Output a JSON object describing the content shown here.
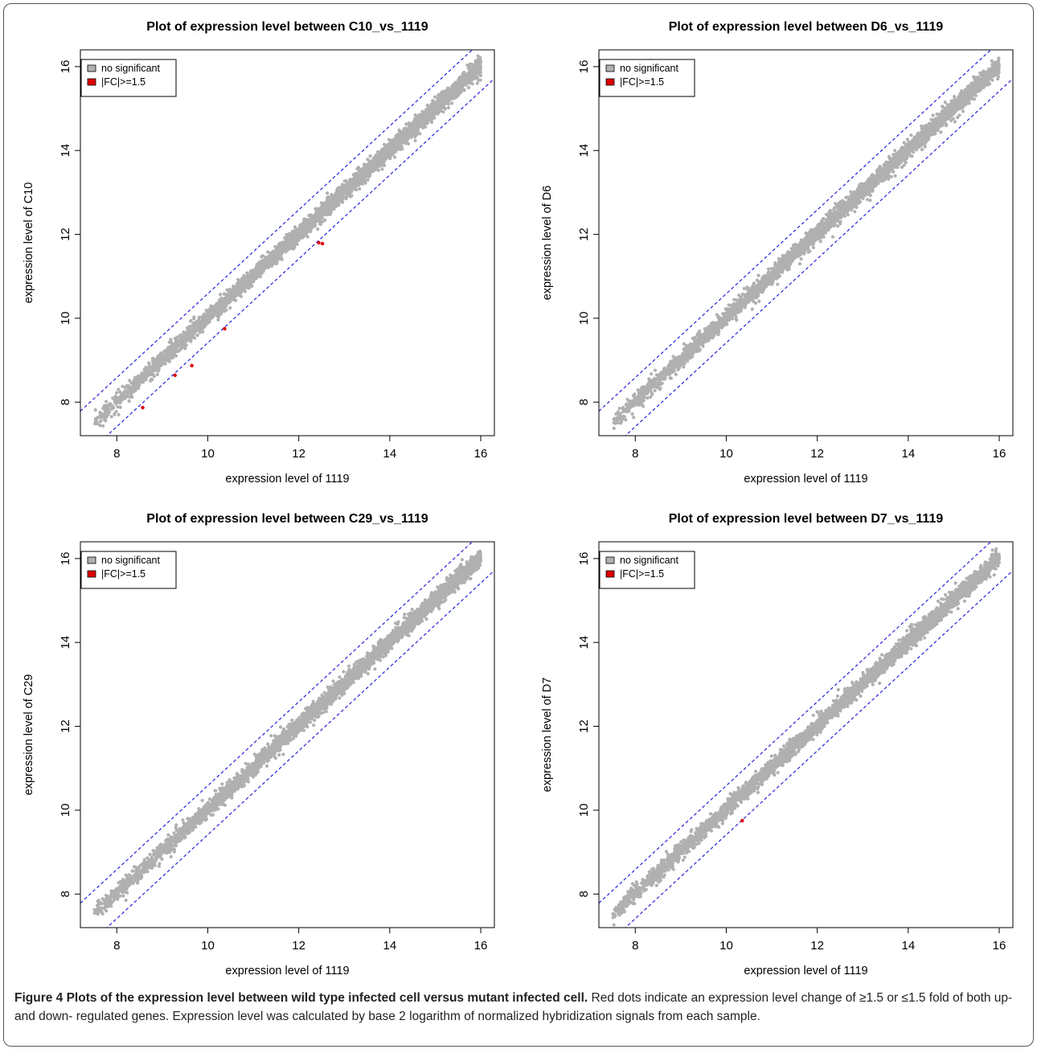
{
  "chart_data": [
    {
      "type": "scatter",
      "title": "Plot of expression level between C10_vs_1119",
      "xlabel": "expression level of 1119",
      "ylabel": "expression level of C10",
      "xlim": [
        7.2,
        16.3
      ],
      "ylim": [
        7.2,
        16.4
      ],
      "xticks": [
        8,
        10,
        12,
        14,
        16
      ],
      "yticks": [
        8,
        10,
        12,
        14,
        16
      ],
      "grid": false,
      "legend_position": "top-left",
      "reference_lines": [
        {
          "style": "dashed",
          "color": "#2222dd",
          "slope": 1,
          "intercept": 0.585
        },
        {
          "style": "dashed",
          "color": "#2222dd",
          "slope": 1,
          "intercept": -0.585
        }
      ],
      "series": [
        {
          "name": "no significant",
          "color": "#b0b0b0",
          "distribution": "dense band along y = x from about (7.5, 7.5) to (16, 16)"
        },
        {
          "name": "|FC|>=1.5",
          "color": "#dd0000",
          "points": [
            [
              8.57,
              7.87
            ],
            [
              9.28,
              8.64
            ],
            [
              9.65,
              8.87
            ],
            [
              10.37,
              9.75
            ],
            [
              12.44,
              11.8
            ],
            [
              12.52,
              11.78
            ]
          ]
        }
      ]
    },
    {
      "type": "scatter",
      "title": "Plot of expression level between D6_vs_1119",
      "xlabel": "expression level of 1119",
      "ylabel": "expression level of D6",
      "xlim": [
        7.2,
        16.3
      ],
      "ylim": [
        7.2,
        16.4
      ],
      "xticks": [
        8,
        10,
        12,
        14,
        16
      ],
      "yticks": [
        8,
        10,
        12,
        14,
        16
      ],
      "grid": false,
      "legend_position": "top-left",
      "reference_lines": [
        {
          "style": "dashed",
          "color": "#2222dd",
          "slope": 1,
          "intercept": 0.585
        },
        {
          "style": "dashed",
          "color": "#2222dd",
          "slope": 1,
          "intercept": -0.585
        }
      ],
      "series": [
        {
          "name": "no significant",
          "color": "#b0b0b0",
          "distribution": "dense band along y = x from about (7.5, 7.5) to (16, 16)"
        },
        {
          "name": "|FC|>=1.5",
          "color": "#dd0000",
          "points": []
        }
      ]
    },
    {
      "type": "scatter",
      "title": "Plot of expression level between C29_vs_1119",
      "xlabel": "expression level of 1119",
      "ylabel": "expression level of C29",
      "xlim": [
        7.2,
        16.3
      ],
      "ylim": [
        7.2,
        16.4
      ],
      "xticks": [
        8,
        10,
        12,
        14,
        16
      ],
      "yticks": [
        8,
        10,
        12,
        14,
        16
      ],
      "grid": false,
      "legend_position": "top-left",
      "reference_lines": [
        {
          "style": "dashed",
          "color": "#2222dd",
          "slope": 1,
          "intercept": 0.585
        },
        {
          "style": "dashed",
          "color": "#2222dd",
          "slope": 1,
          "intercept": -0.585
        }
      ],
      "series": [
        {
          "name": "no significant",
          "color": "#b0b0b0",
          "distribution": "dense band along y = x from about (7.5, 7.5) to (16, 16)"
        },
        {
          "name": "|FC|>=1.5",
          "color": "#dd0000",
          "points": []
        }
      ]
    },
    {
      "type": "scatter",
      "title": "Plot of expression level between D7_vs_1119",
      "xlabel": "expression level of 1119",
      "ylabel": "expression level of D7",
      "xlim": [
        7.2,
        16.3
      ],
      "ylim": [
        7.2,
        16.4
      ],
      "xticks": [
        8,
        10,
        12,
        14,
        16
      ],
      "yticks": [
        8,
        10,
        12,
        14,
        16
      ],
      "grid": false,
      "legend_position": "top-left",
      "reference_lines": [
        {
          "style": "dashed",
          "color": "#2222dd",
          "slope": 1,
          "intercept": 0.585
        },
        {
          "style": "dashed",
          "color": "#2222dd",
          "slope": 1,
          "intercept": -0.585
        }
      ],
      "series": [
        {
          "name": "no significant",
          "color": "#b0b0b0",
          "distribution": "dense band along y = x from about (7.5, 7.5) to (16, 16)"
        },
        {
          "name": "|FC|>=1.5",
          "color": "#dd0000",
          "points": [
            [
              10.35,
              9.75
            ]
          ]
        }
      ]
    }
  ],
  "caption": {
    "label": "Figure 4 Plots of the expression level between wild type infected cell versus mutant infected cell.",
    "text": " Red dots indicate an expression level change of ≥1.5 or ≤1.5 fold of both up- and down- regulated genes. Expression level was calculated by base 2 logarithm of normalized hybridization signals from each sample."
  }
}
